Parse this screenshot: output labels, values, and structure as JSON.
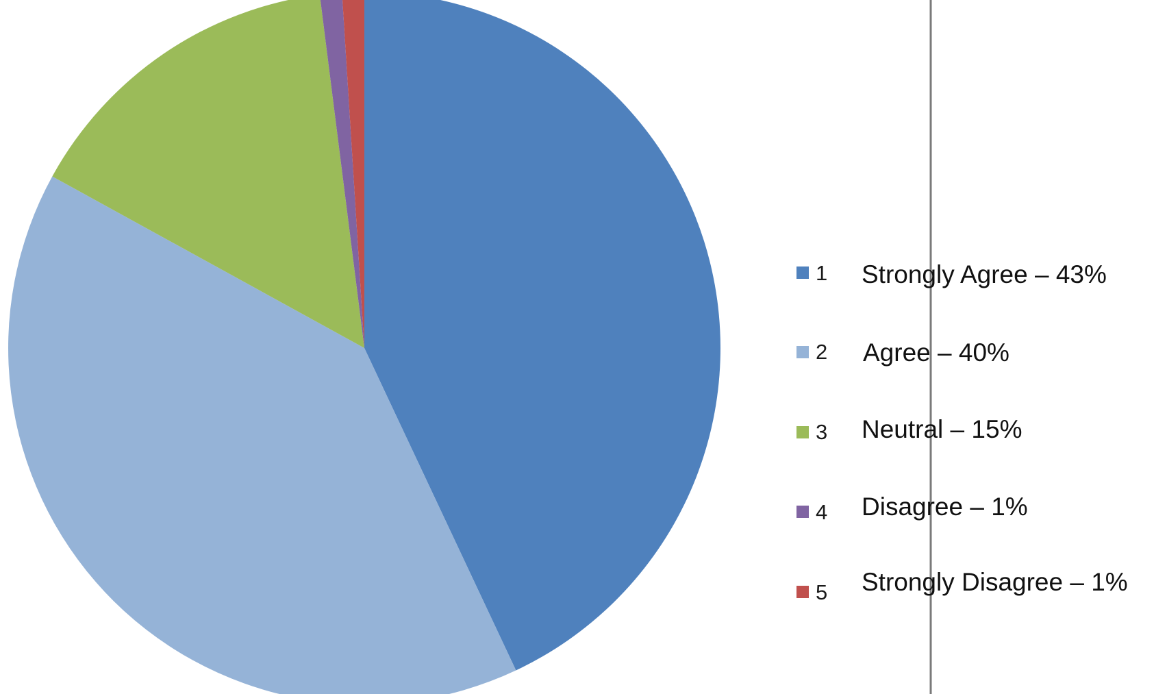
{
  "chart_data": {
    "type": "pie",
    "categories": [
      "1",
      "2",
      "3",
      "4",
      "5"
    ],
    "values": [
      43,
      40,
      15,
      1,
      1
    ],
    "labels": [
      "Strongly Agree – 43%",
      "Agree – 40%",
      "Neutral – 15%",
      "Disagree – 1%",
      "Strongly Disagree – 1%"
    ],
    "colors": [
      "#4f81bd",
      "#95b3d7",
      "#9bbb59",
      "#8064a2",
      "#c0504d"
    ],
    "start_angle_deg": 0,
    "direction": "clockwise",
    "legend_position": "right",
    "title": ""
  }
}
